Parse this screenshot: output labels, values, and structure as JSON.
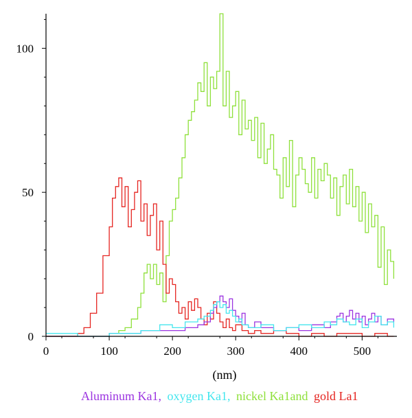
{
  "chart_data": {
    "type": "line",
    "title": "",
    "xlabel": "(nm)",
    "ylabel": "",
    "xlim": [
      0,
      555
    ],
    "ylim": [
      0,
      112
    ],
    "x_ticks": [
      0,
      100,
      200,
      300,
      400,
      500
    ],
    "y_ticks": [
      0,
      50,
      100
    ],
    "grid": false,
    "legend_position": "bottom",
    "legend": [
      {
        "text": "Aluminum Ka1,",
        "color": "#9b33e0"
      },
      {
        "text": "oxygen Ka1,",
        "color": "#44e6ee"
      },
      {
        "text": "nickel Ka1and",
        "color": "#8ee03a"
      },
      {
        "text": "gold La1",
        "color": "#e52420"
      }
    ],
    "series": [
      {
        "color": "#8ee03a",
        "x": [
          0,
          25,
          50,
          75,
          100,
          115,
          125,
          135,
          145,
          150,
          155,
          160,
          165,
          170,
          175,
          180,
          185,
          190,
          195,
          200,
          205,
          210,
          215,
          220,
          225,
          230,
          235,
          240,
          245,
          250,
          255,
          260,
          265,
          270,
          275,
          280,
          285,
          290,
          295,
          300,
          305,
          310,
          315,
          320,
          325,
          330,
          335,
          340,
          345,
          350,
          355,
          360,
          365,
          370,
          375,
          380,
          385,
          390,
          395,
          400,
          405,
          410,
          415,
          420,
          425,
          430,
          435,
          440,
          445,
          450,
          455,
          460,
          465,
          470,
          475,
          480,
          485,
          490,
          495,
          500,
          505,
          510,
          515,
          520,
          525,
          530,
          535,
          540,
          545,
          550
        ],
        "values": [
          0,
          0,
          0,
          0,
          1,
          2,
          3,
          6,
          10,
          15,
          22,
          25,
          20,
          25,
          18,
          22,
          12,
          28,
          40,
          44,
          48,
          55,
          62,
          70,
          75,
          78,
          82,
          88,
          85,
          95,
          80,
          90,
          86,
          92,
          112,
          80,
          92,
          76,
          80,
          85,
          70,
          82,
          72,
          75,
          68,
          76,
          62,
          74,
          60,
          65,
          70,
          58,
          56,
          48,
          62,
          52,
          68,
          45,
          56,
          62,
          58,
          53,
          50,
          62,
          48,
          58,
          54,
          60,
          56,
          48,
          55,
          42,
          52,
          56,
          46,
          58,
          45,
          52,
          40,
          50,
          36,
          46,
          38,
          42,
          24,
          38,
          18,
          30,
          26,
          20
        ]
      },
      {
        "color": "#e52420",
        "x": [
          0,
          25,
          50,
          60,
          70,
          80,
          90,
          100,
          105,
          110,
          115,
          120,
          125,
          130,
          135,
          140,
          145,
          150,
          155,
          160,
          165,
          170,
          175,
          180,
          185,
          190,
          195,
          200,
          205,
          210,
          215,
          220,
          225,
          230,
          235,
          240,
          245,
          250,
          255,
          260,
          265,
          270,
          275,
          280,
          285,
          290,
          295,
          300,
          310,
          320,
          330,
          340,
          360,
          380,
          400,
          420,
          440,
          460,
          480,
          500,
          520,
          540,
          550
        ],
        "values": [
          0,
          0,
          1,
          3,
          8,
          15,
          28,
          38,
          48,
          52,
          55,
          45,
          52,
          38,
          44,
          50,
          54,
          40,
          46,
          35,
          42,
          46,
          30,
          40,
          25,
          15,
          20,
          18,
          12,
          8,
          10,
          6,
          12,
          9,
          13,
          10,
          6,
          4,
          8,
          6,
          12,
          8,
          5,
          3,
          6,
          3,
          2,
          4,
          2,
          1,
          2,
          1,
          2,
          1,
          0,
          1,
          0,
          1,
          1,
          0,
          1,
          0,
          0
        ]
      },
      {
        "color": "#9b33e0",
        "x": [
          0,
          50,
          100,
          150,
          200,
          220,
          240,
          250,
          260,
          265,
          270,
          275,
          280,
          285,
          290,
          295,
          300,
          305,
          310,
          315,
          320,
          330,
          340,
          360,
          380,
          400,
          420,
          440,
          450,
          460,
          465,
          470,
          475,
          480,
          485,
          490,
          495,
          500,
          505,
          510,
          515,
          520,
          525,
          530,
          540,
          550
        ],
        "values": [
          0,
          0,
          1,
          2,
          2,
          3,
          4,
          5,
          8,
          10,
          12,
          14,
          12,
          10,
          13,
          9,
          7,
          5,
          8,
          4,
          3,
          5,
          3,
          2,
          3,
          2,
          4,
          3,
          5,
          7,
          8,
          5,
          7,
          9,
          6,
          8,
          5,
          7,
          4,
          6,
          8,
          5,
          7,
          4,
          6,
          5
        ]
      },
      {
        "color": "#44e6ee",
        "x": [
          0,
          50,
          100,
          150,
          180,
          200,
          220,
          240,
          250,
          260,
          265,
          270,
          275,
          280,
          285,
          290,
          295,
          300,
          305,
          310,
          320,
          340,
          360,
          380,
          400,
          420,
          440,
          450,
          460,
          470,
          480,
          490,
          500,
          510,
          520,
          530,
          540,
          550
        ],
        "values": [
          1,
          0,
          1,
          2,
          4,
          3,
          5,
          6,
          7,
          9,
          11,
          12,
          10,
          11,
          8,
          9,
          7,
          5,
          6,
          4,
          3,
          4,
          2,
          3,
          4,
          3,
          5,
          4,
          6,
          5,
          4,
          6,
          3,
          5,
          7,
          4,
          5,
          3
        ]
      }
    ]
  }
}
